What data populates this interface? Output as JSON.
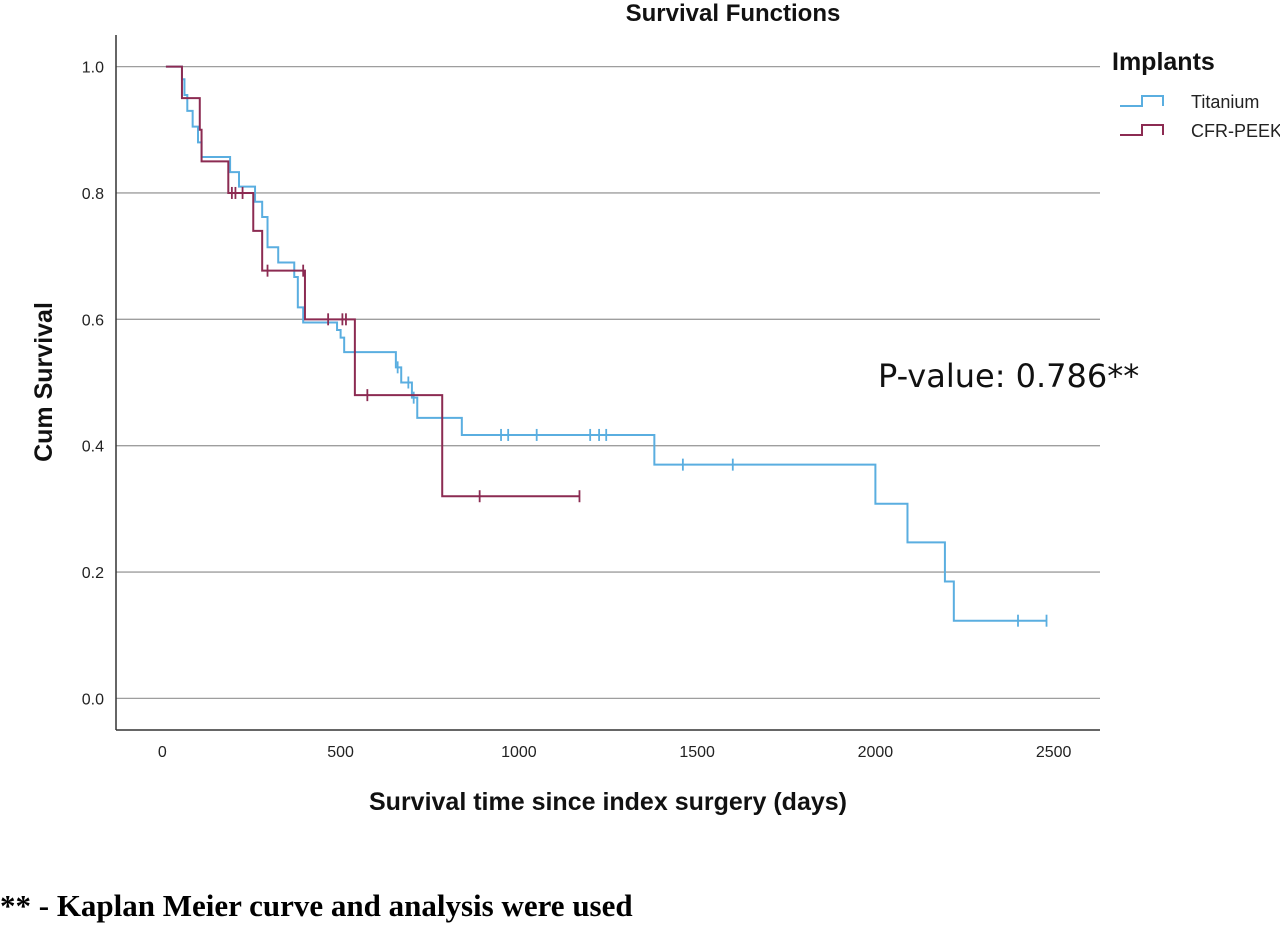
{
  "chart_data": {
    "type": "line",
    "title": "Survival Functions",
    "xlabel": "Survival time since index surgery (days)",
    "ylabel": "Cum Survival",
    "xlim": [
      -130,
      2630
    ],
    "ylim": [
      -0.05,
      1.05
    ],
    "x_ticks": [
      0,
      500,
      1000,
      1500,
      2000,
      2500
    ],
    "x_tick_labels": [
      "0",
      "500",
      "1000",
      "1500",
      "2000",
      "2500"
    ],
    "y_ticks": [
      0.0,
      0.2,
      0.4,
      0.6,
      0.8,
      1.0
    ],
    "y_tick_labels": [
      "0.0",
      "0.2",
      "0.4",
      "0.6",
      "0.8",
      "1.0"
    ],
    "grid": "horizontal",
    "legend_title": "Implants",
    "legend_position": "top-right",
    "annotation": "P-value: 0.786**",
    "series": [
      {
        "name": "Titanium",
        "color": "#5aaee0",
        "steps": [
          [
            10,
            1.0
          ],
          [
            55,
            0.98
          ],
          [
            62,
            0.955
          ],
          [
            70,
            0.93
          ],
          [
            85,
            0.905
          ],
          [
            100,
            0.88
          ],
          [
            110,
            0.857
          ],
          [
            190,
            0.833
          ],
          [
            215,
            0.81
          ],
          [
            260,
            0.786
          ],
          [
            280,
            0.762
          ],
          [
            295,
            0.714
          ],
          [
            325,
            0.69
          ],
          [
            370,
            0.667
          ],
          [
            380,
            0.619
          ],
          [
            395,
            0.595
          ],
          [
            490,
            0.583
          ],
          [
            500,
            0.571
          ],
          [
            510,
            0.548
          ],
          [
            655,
            0.524
          ],
          [
            670,
            0.5
          ],
          [
            700,
            0.476
          ],
          [
            715,
            0.444
          ],
          [
            840,
            0.417
          ],
          [
            1380,
            0.37
          ],
          [
            2000,
            0.308
          ],
          [
            2090,
            0.247
          ],
          [
            2195,
            0.185
          ],
          [
            2220,
            0.123
          ]
        ],
        "end_x": 2480,
        "censored": [
          [
            660,
            0.524
          ],
          [
            690,
            0.5
          ],
          [
            705,
            0.476
          ],
          [
            950,
            0.417
          ],
          [
            970,
            0.417
          ],
          [
            1050,
            0.417
          ],
          [
            1200,
            0.417
          ],
          [
            1225,
            0.417
          ],
          [
            1245,
            0.417
          ],
          [
            1460,
            0.37
          ],
          [
            1600,
            0.37
          ],
          [
            2400,
            0.123
          ],
          [
            2480,
            0.123
          ]
        ]
      },
      {
        "name": "CFR-PEEK",
        "color": "#8c2b52",
        "steps": [
          [
            10,
            1.0
          ],
          [
            55,
            0.95
          ],
          [
            105,
            0.9
          ],
          [
            110,
            0.85
          ],
          [
            185,
            0.8
          ],
          [
            255,
            0.74
          ],
          [
            280,
            0.677
          ],
          [
            400,
            0.6
          ],
          [
            540,
            0.48
          ],
          [
            785,
            0.32
          ]
        ],
        "end_x": 1170,
        "censored": [
          [
            195,
            0.8
          ],
          [
            205,
            0.8
          ],
          [
            225,
            0.8
          ],
          [
            295,
            0.677
          ],
          [
            395,
            0.677
          ],
          [
            465,
            0.6
          ],
          [
            505,
            0.6
          ],
          [
            515,
            0.6
          ],
          [
            575,
            0.48
          ],
          [
            890,
            0.32
          ],
          [
            1170,
            0.32
          ]
        ]
      }
    ]
  },
  "footnote": "** - Kaplan Meier curve and analysis were used"
}
